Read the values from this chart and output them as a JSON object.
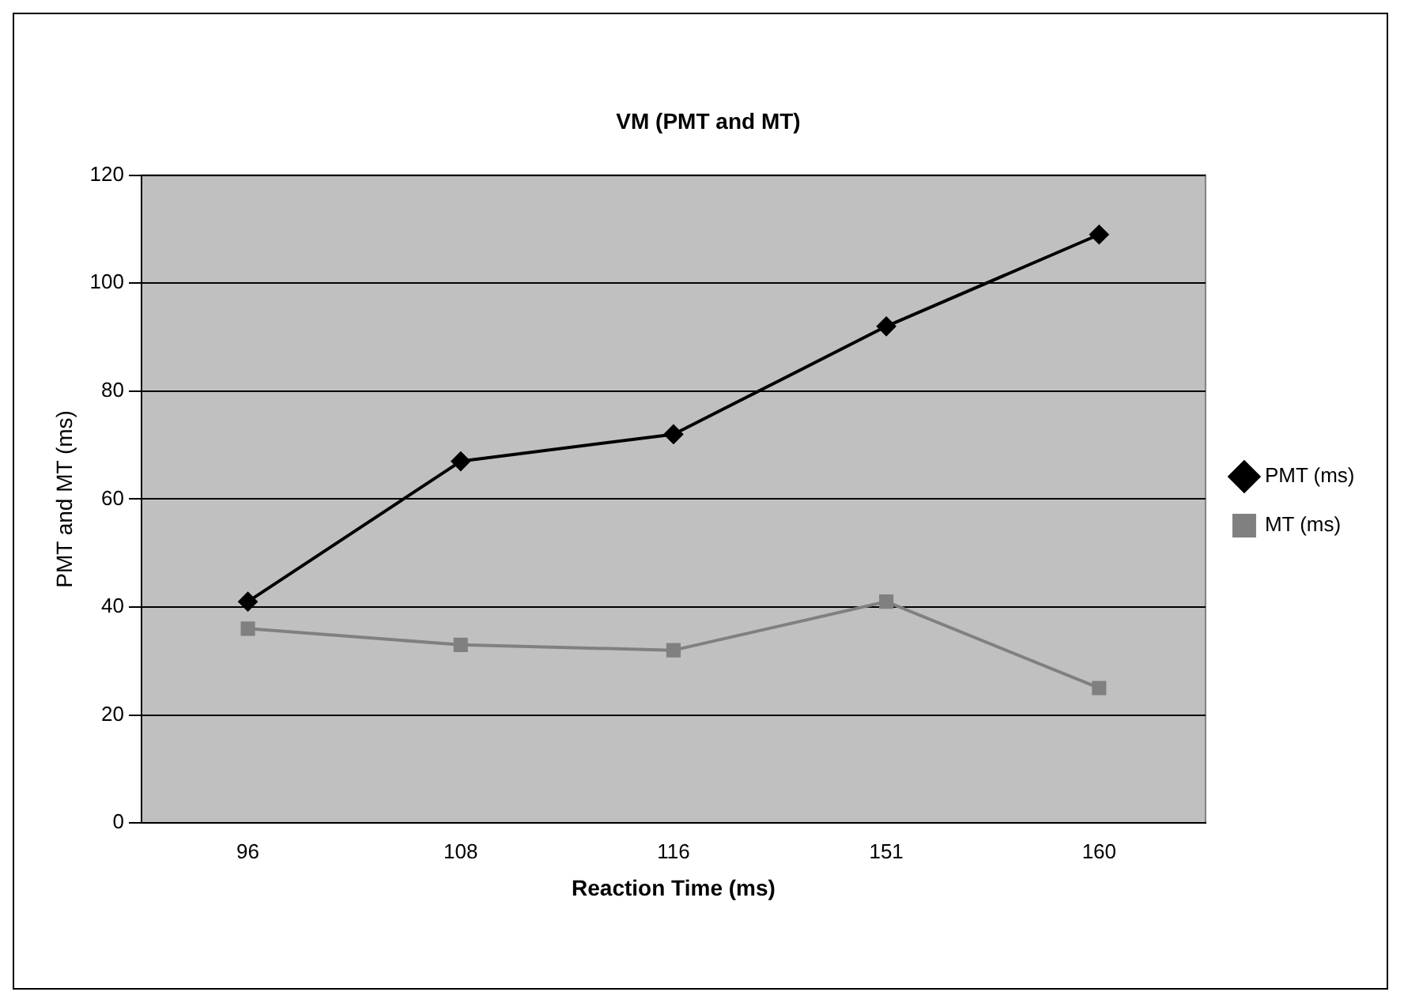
{
  "chart_data": {
    "type": "line",
    "title": "VM (PMT and MT)",
    "xlabel": "Reaction Time (ms)",
    "ylabel": "PMT and MT (ms)",
    "categories": [
      "96",
      "108",
      "116",
      "151",
      "160"
    ],
    "series": [
      {
        "name": "PMT (ms)",
        "color": "#000000",
        "marker": "diamond",
        "values": [
          41,
          67,
          72,
          92,
          109
        ]
      },
      {
        "name": "MT (ms)",
        "color": "#808080",
        "marker": "square",
        "values": [
          36,
          33,
          32,
          41,
          25
        ]
      }
    ],
    "ylim": [
      0,
      120
    ],
    "yticks": [
      0,
      20,
      40,
      60,
      80,
      100,
      120
    ],
    "grid": "y",
    "legend": "right",
    "line_style": "solid"
  }
}
